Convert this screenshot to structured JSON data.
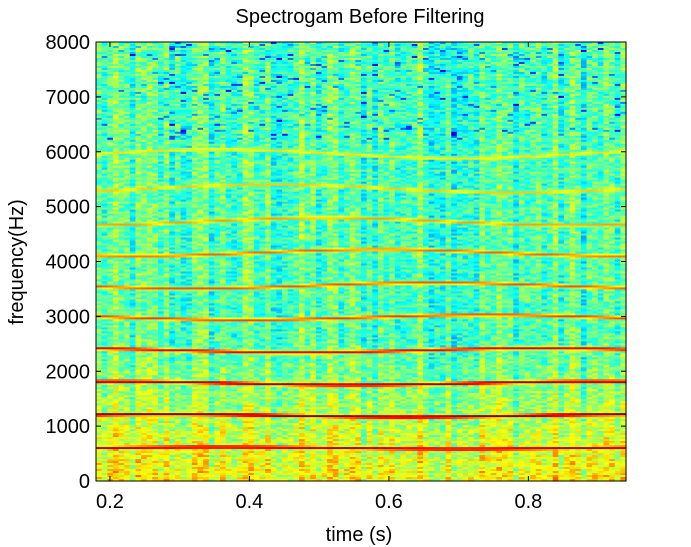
{
  "chart_data": {
    "type": "heatmap",
    "title": "Spectrogam Before Filtering",
    "xlabel": "time (s)",
    "ylabel": "frequency(Hz)",
    "xlim": [
      0.18,
      0.94
    ],
    "ylim": [
      0,
      8000
    ],
    "xticks": [
      0.2,
      0.4,
      0.6,
      0.8
    ],
    "xtick_labels": [
      "0.2",
      "0.4",
      "0.6",
      "0.8"
    ],
    "yticks": [
      0,
      1000,
      2000,
      3000,
      4000,
      5000,
      6000,
      7000,
      8000
    ],
    "ytick_labels": [
      "0",
      "1000",
      "2000",
      "3000",
      "4000",
      "5000",
      "6000",
      "7000",
      "8000"
    ],
    "colormap": "jet",
    "background_intensity": 0.45,
    "harmonic_bands": [
      {
        "freq_hz": 600,
        "intensity": 0.95
      },
      {
        "freq_hz": 1190,
        "intensity": 1.0
      },
      {
        "freq_hz": 1780,
        "intensity": 0.97
      },
      {
        "freq_hz": 2380,
        "intensity": 0.9
      },
      {
        "freq_hz": 2980,
        "intensity": 0.82
      },
      {
        "freq_hz": 3560,
        "intensity": 0.8
      },
      {
        "freq_hz": 4160,
        "intensity": 0.78
      },
      {
        "freq_hz": 4730,
        "intensity": 0.72
      },
      {
        "freq_hz": 5330,
        "intensity": 0.68
      },
      {
        "freq_hz": 5960,
        "intensity": 0.66
      }
    ]
  },
  "colors": {
    "axis": "#000000",
    "background": "#ffffff"
  }
}
